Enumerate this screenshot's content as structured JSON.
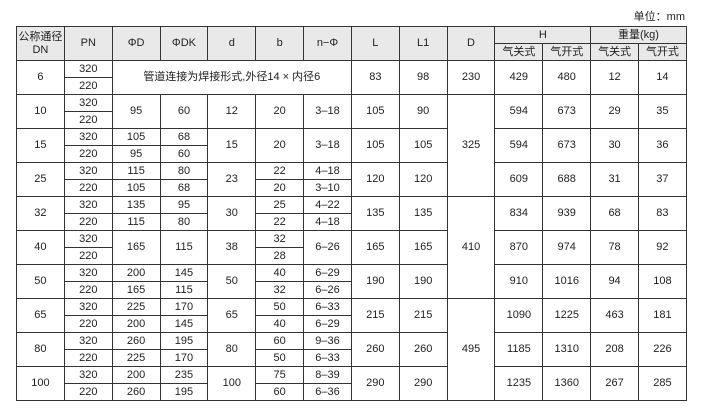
{
  "unit_label": "单位：mm",
  "headers": {
    "dn": [
      "公称通径",
      "DN"
    ],
    "pn": "PN",
    "phi_d": "ΦD",
    "phi_dk": "ΦDK",
    "d": "d",
    "b": "b",
    "n_phi": "n−Φ",
    "L": "L",
    "L1": "L1",
    "D": "D",
    "H": "H",
    "weight": "重量(kg)",
    "air_close": "气关式",
    "air_open": "气开式"
  },
  "note_dn6": "管道连接为焊接形式,外径14 × 内径6",
  "D_groups": [
    {
      "value": "230",
      "rows": 1
    },
    {
      "value": "325",
      "rows": 3
    },
    {
      "value": "410",
      "rows": 3
    },
    {
      "value": "495",
      "rows": 3
    }
  ],
  "rows": [
    {
      "dn": "6",
      "pn": [
        "320",
        "220"
      ],
      "phi_d": null,
      "phi_dk": null,
      "d": null,
      "b": null,
      "n": null,
      "L": "83",
      "L1": "98",
      "H_close": "429",
      "H_open": "480",
      "W_close": "12",
      "W_open": "14"
    },
    {
      "dn": "10",
      "pn": [
        "320",
        "220"
      ],
      "phi_d": "95",
      "phi_dk": "60",
      "d": "12",
      "b": "20",
      "n": "3–18",
      "L": "105",
      "L1": "90",
      "H_close": "594",
      "H_open": "673",
      "W_close": "29",
      "W_open": "35"
    },
    {
      "dn": "15",
      "pn": [
        "320",
        "220"
      ],
      "phi_d": [
        "105",
        "95"
      ],
      "phi_dk": [
        "68",
        "60"
      ],
      "d": "15",
      "b": "20",
      "n": "3–18",
      "L": "105",
      "L1": "105",
      "H_close": "594",
      "H_open": "673",
      "W_close": "30",
      "W_open": "36"
    },
    {
      "dn": "25",
      "pn": [
        "320",
        "220"
      ],
      "phi_d": [
        "115",
        "105"
      ],
      "phi_dk": [
        "80",
        "68"
      ],
      "d": "23",
      "b": [
        "22",
        "20"
      ],
      "n": [
        "4–18",
        "3–10"
      ],
      "L": "120",
      "L1": "120",
      "H_close": "609",
      "H_open": "688",
      "W_close": "31",
      "W_open": "37"
    },
    {
      "dn": "32",
      "pn": [
        "320",
        "220"
      ],
      "phi_d": [
        "135",
        "115"
      ],
      "phi_dk": [
        "95",
        "80"
      ],
      "d": "30",
      "b": [
        "25",
        "22"
      ],
      "n": [
        "4–22",
        "4–18"
      ],
      "L": "135",
      "L1": "135",
      "H_close": "834",
      "H_open": "939",
      "W_close": "68",
      "W_open": "83"
    },
    {
      "dn": "40",
      "pn": [
        "320",
        "220"
      ],
      "phi_d": "165",
      "phi_dk": "115",
      "d": "38",
      "b": [
        "32",
        "28"
      ],
      "n": "6–26",
      "L": "165",
      "L1": "165",
      "H_close": "870",
      "H_open": "974",
      "W_close": "78",
      "W_open": "92"
    },
    {
      "dn": "50",
      "pn": [
        "320",
        "220"
      ],
      "phi_d": [
        "200",
        "165"
      ],
      "phi_dk": [
        "145",
        "115"
      ],
      "d": "50",
      "b": [
        "40",
        "32"
      ],
      "n": [
        "6–29",
        "6–26"
      ],
      "L": "190",
      "L1": "190",
      "H_close": "910",
      "H_open": "1016",
      "W_close": "94",
      "W_open": "108"
    },
    {
      "dn": "65",
      "pn": [
        "320",
        "220"
      ],
      "phi_d": [
        "225",
        "200"
      ],
      "phi_dk": [
        "170",
        "145"
      ],
      "d": "65",
      "b": [
        "50",
        "40"
      ],
      "n": [
        "6–33",
        "6–29"
      ],
      "L": "215",
      "L1": "215",
      "H_close": "1090",
      "H_open": "1225",
      "W_close": "463",
      "W_open": "181"
    },
    {
      "dn": "80",
      "pn": [
        "320",
        "220"
      ],
      "phi_d": [
        "260",
        "225"
      ],
      "phi_dk": [
        "195",
        "170"
      ],
      "d": "80",
      "b": [
        "60",
        "50"
      ],
      "n": [
        "9–36",
        "6–33"
      ],
      "L": "260",
      "L1": "260",
      "H_close": "1185",
      "H_open": "1310",
      "W_close": "208",
      "W_open": "226"
    },
    {
      "dn": "100",
      "pn": [
        "320",
        "220"
      ],
      "phi_d": [
        "200",
        "260"
      ],
      "phi_dk": [
        "235",
        "195"
      ],
      "d": "100",
      "b": [
        "75",
        "60"
      ],
      "n": [
        "8–39",
        "6–36"
      ],
      "L": "290",
      "L1": "290",
      "H_close": "1235",
      "H_open": "1360",
      "W_close": "267",
      "W_open": "285"
    }
  ]
}
